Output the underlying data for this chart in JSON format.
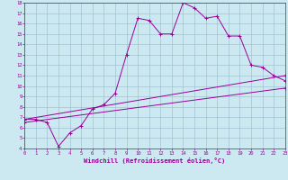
{
  "xlabel": "Windchill (Refroidissement éolien,°C)",
  "xlim": [
    0,
    23
  ],
  "ylim": [
    4,
    18
  ],
  "xticks": [
    0,
    1,
    2,
    3,
    4,
    5,
    6,
    7,
    8,
    9,
    10,
    11,
    12,
    13,
    14,
    15,
    16,
    17,
    18,
    19,
    20,
    21,
    22,
    23
  ],
  "yticks": [
    4,
    5,
    6,
    7,
    8,
    9,
    10,
    11,
    12,
    13,
    14,
    15,
    16,
    17,
    18
  ],
  "bg_color": "#cce8f0",
  "line_color": "#990099",
  "grid_color": "#99bbcc",
  "line1_x": [
    0,
    1,
    2,
    3,
    4,
    5,
    6,
    7,
    8,
    9,
    10,
    11,
    12,
    13,
    14,
    15,
    16,
    17,
    18,
    19,
    20,
    21,
    22,
    23
  ],
  "line1_y": [
    6.8,
    6.8,
    6.5,
    4.2,
    5.5,
    6.2,
    7.8,
    8.2,
    9.3,
    13.0,
    16.5,
    16.3,
    15.0,
    15.0,
    18.0,
    17.5,
    16.5,
    16.7,
    14.8,
    14.8,
    12.0,
    11.8,
    11.0,
    10.5
  ],
  "line2_x": [
    0,
    23
  ],
  "line2_y": [
    6.8,
    11.0
  ],
  "line3_x": [
    0,
    23
  ],
  "line3_y": [
    6.5,
    9.8
  ]
}
